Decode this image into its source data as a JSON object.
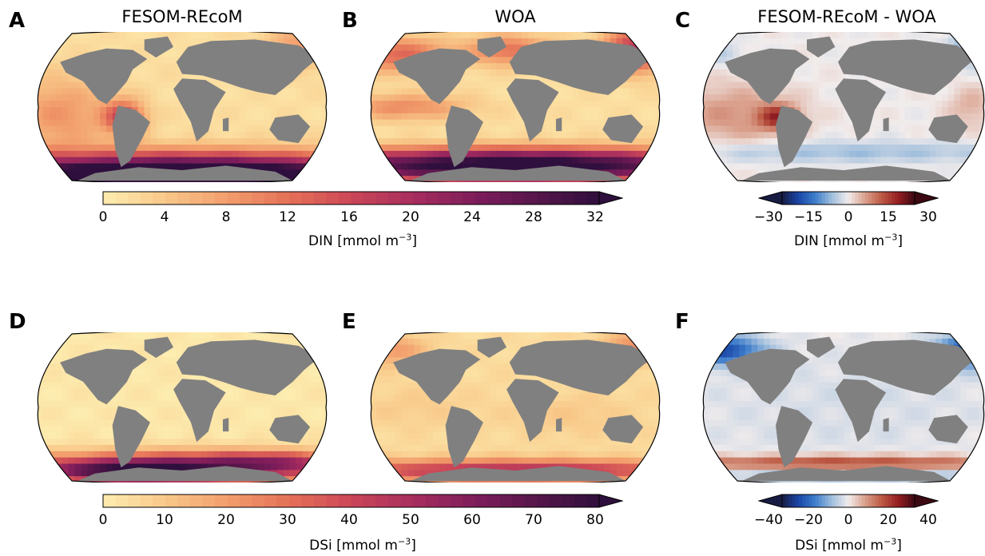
{
  "colors": {
    "land": "#808080",
    "ocean_low": "#fde7a9",
    "outline": "#000000"
  },
  "rows": [
    {
      "panels": [
        {
          "letter": "A",
          "title": "FESOM-REcoM",
          "field": "din_model"
        },
        {
          "letter": "B",
          "title": "WOA",
          "field": "din_obs"
        },
        {
          "letter": "C",
          "title": "FESOM-REcoM - WOA",
          "field": "din_diff"
        }
      ],
      "main_colorbar": {
        "label_prefix": "DIN [mmol m",
        "label_exp": "−3",
        "label_suffix": "]",
        "ticks": [
          "0",
          "4",
          "8",
          "12",
          "16",
          "20",
          "24",
          "28",
          "32"
        ],
        "range": [
          0,
          32
        ],
        "colormap": "matter"
      },
      "diff_colorbar": {
        "label_prefix": "DIN [mmol m",
        "label_exp": "−3",
        "label_suffix": "]",
        "ticks": [
          "−30",
          "−15",
          "0",
          "15",
          "30"
        ],
        "range": [
          -30,
          30
        ],
        "colormap": "balance"
      }
    },
    {
      "panels": [
        {
          "letter": "D",
          "title": "",
          "field": "dsi_model"
        },
        {
          "letter": "E",
          "title": "",
          "field": "dsi_obs"
        },
        {
          "letter": "F",
          "title": "",
          "field": "dsi_diff"
        }
      ],
      "main_colorbar": {
        "label_prefix": "DSi [mmol m",
        "label_exp": "−3",
        "label_suffix": "]",
        "ticks": [
          "0",
          "10",
          "20",
          "30",
          "40",
          "50",
          "60",
          "70",
          "80"
        ],
        "range": [
          0,
          80
        ],
        "colormap": "matter"
      },
      "diff_colorbar": {
        "label_prefix": "DSi [mmol m",
        "label_exp": "−3",
        "label_suffix": "]",
        "ticks": [
          "−40",
          "−20",
          "0",
          "20",
          "40"
        ],
        "range": [
          -40,
          40
        ],
        "colormap": "balance"
      }
    }
  ],
  "chart_data": [
    {
      "type": "heatmap",
      "panel": "A",
      "title": "FESOM-REcoM",
      "variable": "DIN",
      "units": "mmol m-3",
      "colorbar_range": [
        0,
        32
      ],
      "extend": "max"
    },
    {
      "type": "heatmap",
      "panel": "B",
      "title": "WOA",
      "variable": "DIN",
      "units": "mmol m-3",
      "colorbar_range": [
        0,
        32
      ],
      "extend": "max"
    },
    {
      "type": "heatmap",
      "panel": "C",
      "title": "FESOM-REcoM - WOA",
      "variable": "DIN",
      "units": "mmol m-3",
      "colorbar_range": [
        -30,
        30
      ],
      "extend": "both"
    },
    {
      "type": "heatmap",
      "panel": "D",
      "title": "",
      "variable": "DSi",
      "units": "mmol m-3",
      "colorbar_range": [
        0,
        80
      ],
      "extend": "max"
    },
    {
      "type": "heatmap",
      "panel": "E",
      "title": "",
      "variable": "DSi",
      "units": "mmol m-3",
      "colorbar_range": [
        0,
        80
      ],
      "extend": "max"
    },
    {
      "type": "heatmap",
      "panel": "F",
      "title": "",
      "variable": "DSi",
      "units": "mmol m-3",
      "colorbar_range": [
        -40,
        40
      ],
      "extend": "both"
    }
  ]
}
